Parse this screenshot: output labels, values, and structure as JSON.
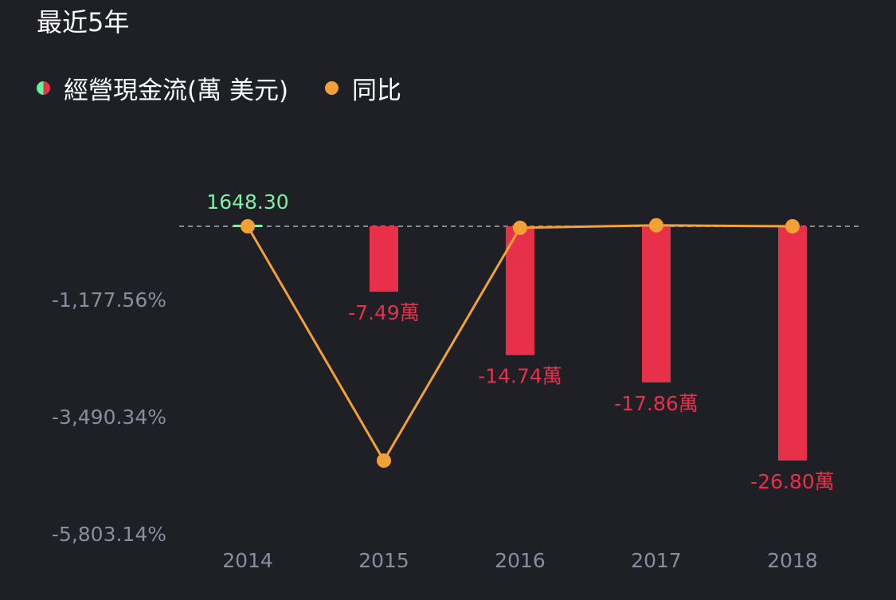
{
  "header": {
    "title": "最近5年"
  },
  "legend": {
    "items": [
      {
        "label": "經營現金流(萬 美元)",
        "icon": "half-green-half-red-dot-icon"
      },
      {
        "label": "同比",
        "icon": "orange-dot-icon"
      }
    ]
  },
  "colors": {
    "background": "#1f1f26",
    "positive": "#7cf2a6",
    "negative": "#e8304a",
    "line": "#f2a234",
    "axis_text": "#8d8c9e",
    "zero_line": "#8a8a8a"
  },
  "chart_data": {
    "type": "bar",
    "categories": [
      "2014",
      "2015",
      "2016",
      "2017",
      "2018"
    ],
    "series": [
      {
        "name": "經營現金流(萬 美元)",
        "type": "bar",
        "values": [
          1648.3,
          -74900,
          -147400,
          -178600,
          -268000
        ],
        "labels": [
          "1648.30",
          "-7.49萬",
          "-14.74萬",
          "-17.86萬",
          "-26.80萬"
        ]
      },
      {
        "name": "同比",
        "type": "line",
        "unit": "%",
        "values": [
          0,
          -4640,
          -30,
          20,
          0
        ]
      }
    ],
    "y_right_ticks": [
      "-1,177.56%",
      "-3,490.34%",
      "-5,803.14%"
    ],
    "y_right_tick_values": [
      -1177.56,
      -3490.34,
      -5803.14
    ],
    "bar_range": [
      -268000,
      0
    ],
    "line_range": [
      -4640,
      0
    ],
    "zero_line": "dashed",
    "grid": false,
    "legend_position": "top-left"
  }
}
